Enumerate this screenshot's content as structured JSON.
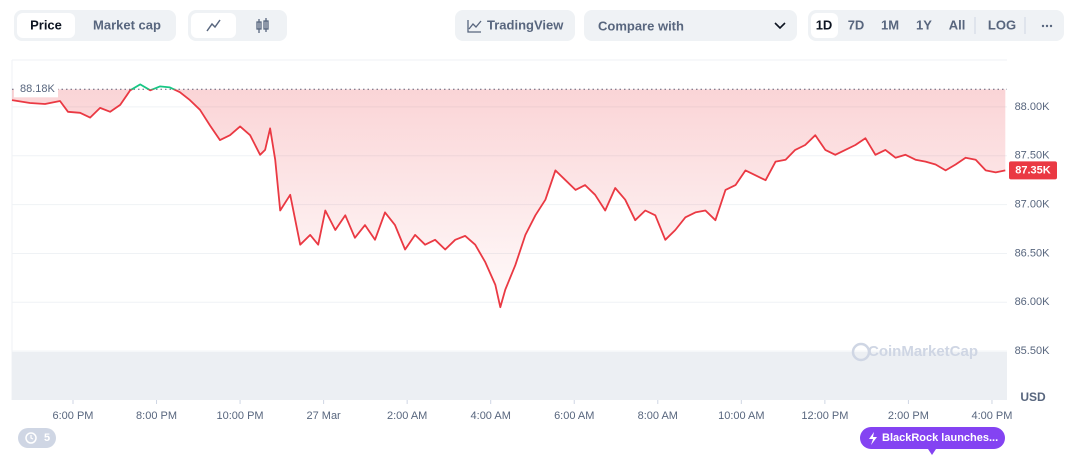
{
  "toolbar": {
    "tabs": [
      "Price",
      "Market cap"
    ],
    "tradingview": "TradingView",
    "compare": "Compare with",
    "ranges": [
      "1D",
      "7D",
      "1M",
      "1Y",
      "All"
    ],
    "log": "LOG"
  },
  "chart_data": {
    "type": "line",
    "x": [
      16.54,
      16.97,
      17.33,
      17.69,
      17.88,
      18.17,
      18.41,
      18.65,
      18.89,
      19.13,
      19.37,
      19.61,
      19.85,
      20.08,
      20.32,
      20.56,
      20.8,
      21.04,
      21.28,
      21.52,
      21.76,
      22.0,
      22.24,
      22.48,
      22.6,
      22.72,
      22.84,
      22.96,
      23.2,
      23.44,
      23.68,
      23.87,
      24.04,
      24.28,
      24.52,
      24.75,
      24.99,
      25.23,
      25.47,
      25.71,
      25.95,
      26.19,
      26.43,
      26.67,
      26.91,
      27.15,
      27.39,
      27.63,
      27.87,
      28.11,
      28.23,
      28.35,
      28.59,
      28.83,
      29.07,
      29.31,
      29.55,
      29.79,
      30.03,
      30.26,
      30.5,
      30.74,
      30.98,
      31.22,
      31.46,
      31.7,
      31.94,
      32.18,
      32.42,
      32.66,
      32.9,
      33.14,
      33.38,
      33.62,
      33.86,
      34.1,
      34.34,
      34.58,
      34.82,
      35.06,
      35.29,
      35.53,
      35.77,
      36.01,
      36.25,
      36.49,
      36.73,
      36.97,
      37.21,
      37.45,
      37.69,
      37.93,
      38.17,
      38.41,
      38.65,
      38.89,
      39.13,
      39.37,
      39.61,
      39.85,
      40.09,
      40.32
    ],
    "values": [
      88070,
      88040,
      88030,
      88060,
      87950,
      87940,
      87890,
      87990,
      87950,
      88020,
      88170,
      88230,
      88170,
      88210,
      88200,
      88150,
      88070,
      87970,
      87810,
      87660,
      87710,
      87800,
      87710,
      87510,
      87560,
      87780,
      87460,
      86940,
      87100,
      86590,
      86690,
      86590,
      86940,
      86740,
      86890,
      86660,
      86790,
      86640,
      86920,
      86790,
      86540,
      86690,
      86590,
      86640,
      86540,
      86640,
      86680,
      86590,
      86410,
      86180,
      85950,
      86130,
      86380,
      86690,
      86890,
      87050,
      87350,
      87250,
      87150,
      87200,
      87100,
      86940,
      87170,
      87050,
      86840,
      86940,
      86890,
      86640,
      86740,
      86870,
      86920,
      86940,
      86840,
      87150,
      87200,
      87350,
      87300,
      87250,
      87440,
      87460,
      87560,
      87610,
      87710,
      87560,
      87510,
      87560,
      87610,
      87680,
      87510,
      87560,
      87480,
      87510,
      87460,
      87440,
      87410,
      87350,
      87410,
      87480,
      87460,
      87350,
      87330,
      87350
    ],
    "color": "#ea3943",
    "up_color": "#16c784",
    "xlim": [
      16.54,
      40.36
    ],
    "xticks": [
      {
        "value": 18,
        "label": "6:00 PM"
      },
      {
        "value": 20,
        "label": "8:00 PM"
      },
      {
        "value": 22,
        "label": "10:00 PM"
      },
      {
        "value": 24,
        "label": "27 Mar"
      },
      {
        "value": 26,
        "label": "2:00 AM"
      },
      {
        "value": 28,
        "label": "4:00 AM"
      },
      {
        "value": 30,
        "label": "6:00 AM"
      },
      {
        "value": 32,
        "label": "8:00 AM"
      },
      {
        "value": 34,
        "label": "10:00 AM"
      },
      {
        "value": 36,
        "label": "12:00 PM"
      },
      {
        "value": 38,
        "label": "2:00 PM"
      },
      {
        "value": 40,
        "label": "4:00 PM"
      }
    ],
    "ylim": [
      85000,
      88480
    ],
    "yticks": [
      {
        "value": 85500,
        "label": "85.50K"
      },
      {
        "value": 86000,
        "label": "86.00K"
      },
      {
        "value": 86500,
        "label": "86.50K"
      },
      {
        "value": 87000,
        "label": "87.00K"
      },
      {
        "value": 87500,
        "label": "87.50K"
      },
      {
        "value": 88000,
        "label": "88.00K"
      }
    ],
    "grid": true,
    "reference": {
      "value": 88180,
      "label": "88.18K"
    },
    "current_price": {
      "value": 87350,
      "label": "87.35K"
    },
    "y_unit": "USD",
    "watermark": "CoinMarketCap"
  },
  "footer": {
    "events": 5,
    "news": "BlackRock launches..."
  }
}
